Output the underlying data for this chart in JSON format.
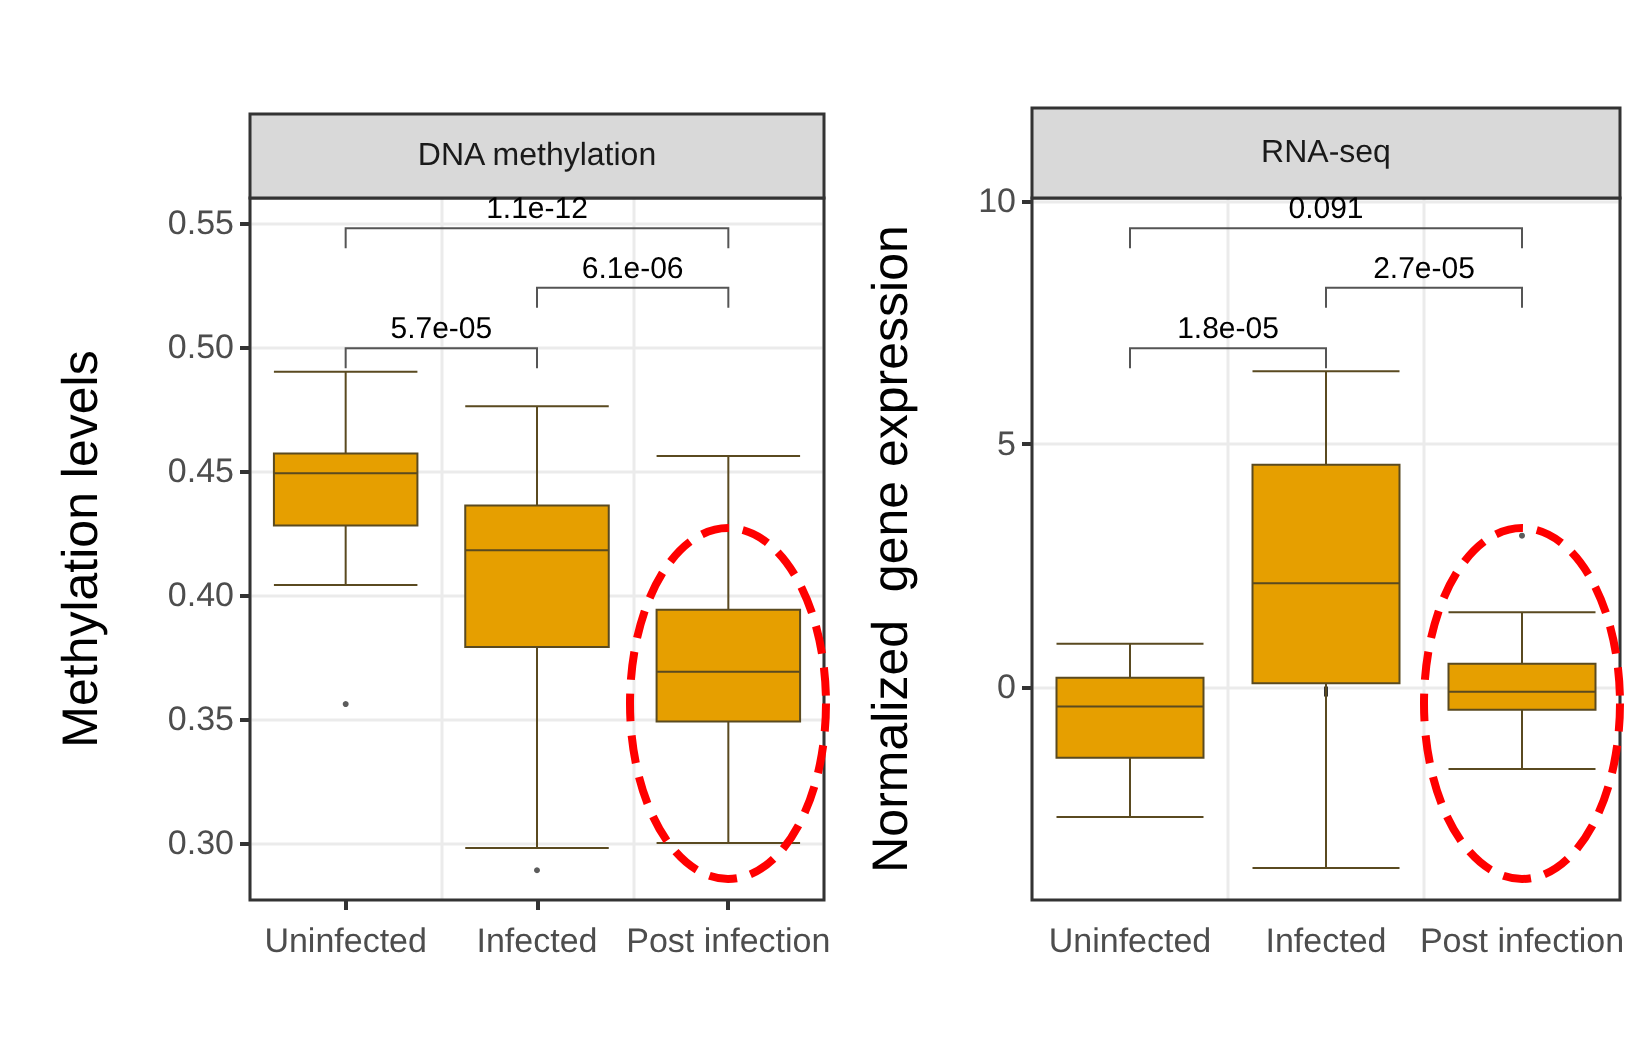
{
  "chart_data": [
    {
      "type": "box",
      "title": "DNA methylation",
      "ylabel": "Methylation levels",
      "categories": [
        "Uninfected",
        "Infected",
        "Post infection"
      ],
      "color": "#e69f00",
      "boxes": [
        {
          "low": 0.404,
          "q1": 0.428,
          "median": 0.449,
          "q3": 0.457,
          "high": 0.49,
          "outliers": [
            0.356
          ]
        },
        {
          "low": 0.298,
          "q1": 0.379,
          "median": 0.418,
          "q3": 0.436,
          "high": 0.476,
          "outliers": [
            0.289
          ]
        },
        {
          "low": 0.3,
          "q1": 0.349,
          "median": 0.369,
          "q3": 0.394,
          "high": 0.456
        }
      ],
      "ylim": [
        0.277,
        0.56
      ],
      "yticks": [
        {
          "value": 0.3,
          "label": "0.30"
        },
        0.35,
        {
          "value": 0.4,
          "label": "0.40"
        },
        0.45,
        {
          "value": 0.5,
          "label": "0.50"
        },
        0.55
      ],
      "grid": true,
      "annotations": [
        "5.7e-05",
        "6.1e-06",
        "1.1e-12"
      ]
    },
    {
      "type": "box",
      "title": "RNA-seq",
      "ylabel": "Normalized  gene expression",
      "categories": [
        "Uninfected",
        "Infected",
        "Post infection"
      ],
      "color": "#e69f00",
      "boxes": [
        {
          "low": -2.69,
          "q1": -1.47,
          "median": -0.41,
          "q3": 0.18,
          "high": 0.88
        },
        {
          "low": -3.74,
          "q1": 0.07,
          "median": 2.13,
          "q3": 4.57,
          "high": 6.5
        },
        {
          "low": -1.7,
          "q1": -0.48,
          "median": -0.11,
          "q3": 0.47,
          "high": 1.53,
          "outliers": [
            3.11
          ]
        }
      ],
      "ylim": [
        -4.4,
        10.07
      ],
      "yticks": [
        0,
        5,
        10
      ],
      "grid": true,
      "annotations": [
        "1.8e-05",
        "2.7e-05",
        "0.091"
      ]
    }
  ]
}
